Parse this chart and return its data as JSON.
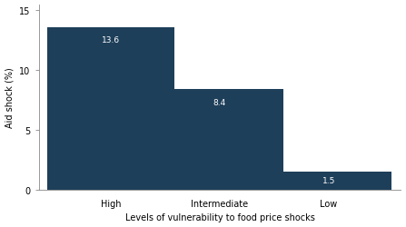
{
  "categories": [
    "High",
    "Intermediate",
    "Low"
  ],
  "values": [
    13.6,
    8.4,
    1.5
  ],
  "bar_color": "#1e3f5a",
  "bar_labels": [
    "13.6",
    "8.4",
    "1.5"
  ],
  "label_color": "#ffffff",
  "xlabel": "Levels of vulnerability to food price shocks",
  "ylabel": "Aid shock (%)",
  "ylim": [
    0,
    15.5
  ],
  "yticks": [
    0,
    5,
    10,
    15
  ],
  "background_color": "#ffffff",
  "xlabel_fontsize": 7.0,
  "ylabel_fontsize": 7.0,
  "tick_fontsize": 7.0,
  "label_fontsize": 6.5,
  "bar_width": 0.35,
  "bar_positions": [
    0.15,
    0.5,
    0.85
  ]
}
